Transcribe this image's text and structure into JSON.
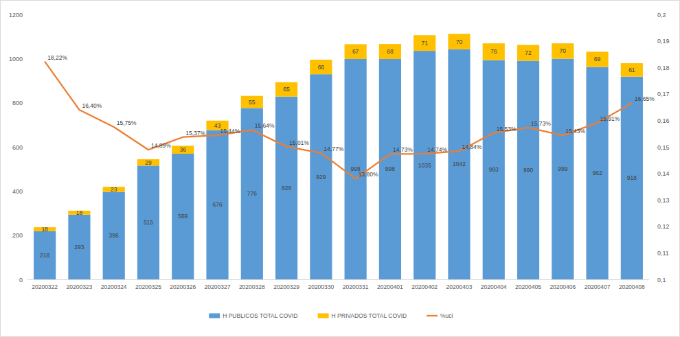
{
  "chart_data": {
    "type": "bar",
    "stacked": true,
    "data_labels": true,
    "grid": false,
    "legend": "bottom",
    "categories": [
      "20200322",
      "20200323",
      "20200324",
      "20200325",
      "20200326",
      "20200327",
      "20200328",
      "20200329",
      "20200330",
      "20200331",
      "20200401",
      "20200402",
      "20200403",
      "20200404",
      "20200405",
      "20200406",
      "20200407",
      "20200408"
    ],
    "ylim": [
      0,
      1200
    ],
    "yticks": [
      0,
      200,
      400,
      600,
      800,
      1000,
      1200
    ],
    "y2lim": [
      0.1,
      0.2
    ],
    "y2ticks": [
      {
        "value": 0.1,
        "label": "0,1"
      },
      {
        "value": 0.11,
        "label": "0,11"
      },
      {
        "value": 0.12,
        "label": "0,12"
      },
      {
        "value": 0.13,
        "label": "0,13"
      },
      {
        "value": 0.14,
        "label": "0,14"
      },
      {
        "value": 0.15,
        "label": "0,15"
      },
      {
        "value": 0.16,
        "label": "0,16"
      },
      {
        "value": 0.17,
        "label": "0,17"
      },
      {
        "value": 0.18,
        "label": "0,18"
      },
      {
        "value": 0.19,
        "label": "0,19"
      },
      {
        "value": 0.2,
        "label": "0,2"
      }
    ],
    "series": [
      {
        "name": "H PUBLICOS TOTAL COVID",
        "type": "bar",
        "color": "#5b9bd5",
        "values": [
          218,
          293,
          396,
          515,
          569,
          676,
          776,
          828,
          929,
          998,
          998,
          1035,
          1042,
          993,
          990,
          999,
          962,
          918
        ]
      },
      {
        "name": "H PRIVADOS TOTAL COVID",
        "type": "bar",
        "color": "#ffc000",
        "values": [
          18,
          18,
          23,
          29,
          36,
          43,
          55,
          65,
          66,
          67,
          68,
          71,
          70,
          76,
          72,
          70,
          69,
          61
        ]
      },
      {
        "name": "%uci",
        "type": "line",
        "axis": "y2",
        "color": "#ed7d31",
        "values": [
          0.1822,
          0.164,
          0.1575,
          0.1489,
          0.1537,
          0.1544,
          0.1564,
          0.1501,
          0.1477,
          0.138,
          0.1473,
          0.1474,
          0.1484,
          0.1553,
          0.1573,
          0.1543,
          0.1591,
          0.1665
        ],
        "value_labels": [
          "18,22%",
          "16,40%",
          "15,75%",
          "14,89%",
          "15,37%",
          "15,44%",
          "15,64%",
          "15,01%",
          "14,77%",
          "13,80%",
          "14,73%",
          "14,74%",
          "14,84%",
          "15,53%",
          "15,73%",
          "15,43%",
          "15,91%",
          "16,65%"
        ]
      }
    ]
  }
}
